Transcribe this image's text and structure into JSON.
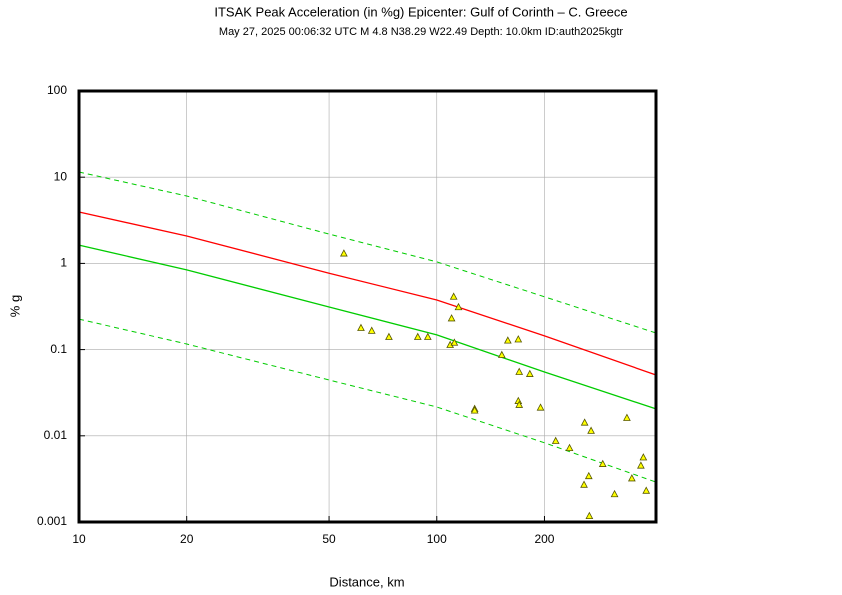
{
  "chart_data": {
    "type": "scatter",
    "title": "ITSAK Peak Acceleration (in %g) Epicenter: Gulf of Corinth – C. Greece",
    "subtitle": "May 27, 2025 00:06:32 UTC    M 4.8    N38.29 W22.49    Depth: 10.0km    ID:auth2025kgtr",
    "x_label": "Distance, km",
    "y_label": "% g",
    "xscale": "log",
    "yscale": "log",
    "grid": true,
    "xlim": [
      10,
      410
    ],
    "ylim": [
      0.001,
      100
    ],
    "xticks": [
      10,
      20,
      50,
      100,
      200
    ],
    "yticks": [
      0.001,
      0.01,
      0.1,
      1,
      10,
      100
    ],
    "lines": [
      {
        "color": "#ff0000",
        "dashed": false,
        "x": [
          10,
          20,
          50,
          100,
          200,
          410
        ],
        "values": [
          3.95,
          2.08,
          0.77,
          0.376,
          0.144,
          0.0507
        ]
      },
      {
        "color": "#00cc00",
        "dashed": false,
        "x": [
          10,
          20,
          50,
          100,
          200,
          410
        ],
        "values": [
          1.63,
          0.84,
          0.312,
          0.148,
          0.055,
          0.0205
        ]
      },
      {
        "color": "#00cc00",
        "dashed": true,
        "x": [
          10,
          20,
          50,
          100,
          200,
          410
        ],
        "values": [
          11.5,
          6.06,
          2.19,
          1.04,
          0.41,
          0.156
        ]
      },
      {
        "color": "#00cc00",
        "dashed": true,
        "x": [
          10,
          20,
          50,
          100,
          200,
          410
        ],
        "values": [
          0.226,
          0.116,
          0.0444,
          0.0216,
          0.0083,
          0.0029
        ]
      }
    ],
    "points": {
      "color": "#ffff00",
      "edgecolor": "#555500",
      "x": [
        55,
        61.4,
        65.8,
        73.5,
        88.5,
        94.4,
        109,
        110,
        111.5,
        112,
        115,
        127.6,
        127.6,
        152,
        158,
        169,
        170,
        169,
        170,
        182,
        195,
        215,
        235,
        258,
        259,
        266,
        270,
        267,
        291,
        314,
        340,
        351,
        372,
        378,
        385
      ],
      "values": [
        1.3,
        0.178,
        0.165,
        0.14,
        0.14,
        0.14,
        0.113,
        0.23,
        0.41,
        0.12,
        0.31,
        0.0205,
        0.0196,
        0.0865,
        0.127,
        0.131,
        0.055,
        0.0253,
        0.0228,
        0.052,
        0.0212,
        0.0087,
        0.0072,
        0.0027,
        0.0142,
        0.0034,
        0.0114,
        0.00117,
        0.0047,
        0.0021,
        0.0161,
        0.0032,
        0.0045,
        0.0056,
        0.0023
      ]
    }
  }
}
